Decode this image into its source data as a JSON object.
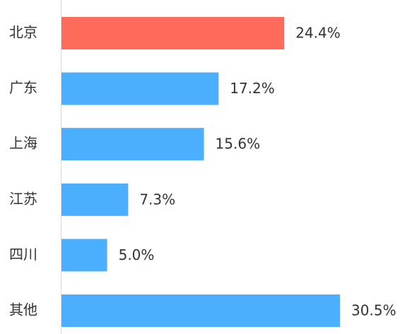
{
  "chart_data": {
    "type": "bar",
    "orientation": "horizontal",
    "categories": [
      "北京",
      "广东",
      "上海",
      "江苏",
      "四川",
      "其他"
    ],
    "values": [
      24.4,
      17.2,
      15.6,
      7.3,
      5.0,
      30.5
    ],
    "value_labels": [
      "24.4%",
      "17.2%",
      "15.6%",
      "7.3%",
      "5.0%",
      "30.5%"
    ],
    "colors": [
      "#ff6b5b",
      "#4baeff",
      "#4baeff",
      "#4baeff",
      "#4baeff",
      "#4baeff"
    ]
  }
}
